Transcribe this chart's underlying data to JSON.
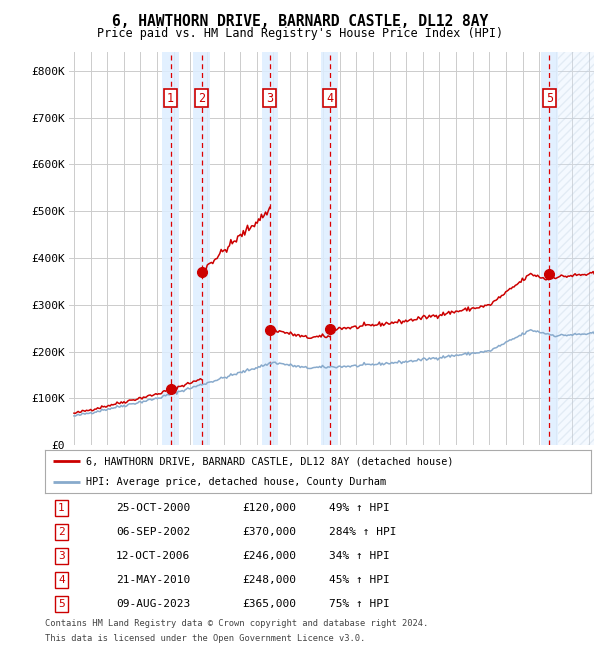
{
  "title": "6, HAWTHORN DRIVE, BARNARD CASTLE, DL12 8AY",
  "subtitle": "Price paid vs. HM Land Registry's House Price Index (HPI)",
  "legend_line1": "6, HAWTHORN DRIVE, BARNARD CASTLE, DL12 8AY (detached house)",
  "legend_line2": "HPI: Average price, detached house, County Durham",
  "footer1": "Contains HM Land Registry data © Crown copyright and database right 2024.",
  "footer2": "This data is licensed under the Open Government Licence v3.0.",
  "transactions": [
    {
      "num": 1,
      "date": "25-OCT-2000",
      "price": 120000,
      "pct": "49%",
      "year": 2000.82
    },
    {
      "num": 2,
      "date": "06-SEP-2002",
      "price": 370000,
      "pct": "284%",
      "year": 2002.69
    },
    {
      "num": 3,
      "date": "12-OCT-2006",
      "price": 246000,
      "pct": "34%",
      "year": 2006.79
    },
    {
      "num": 4,
      "date": "21-MAY-2010",
      "price": 248000,
      "pct": "45%",
      "year": 2010.39
    },
    {
      "num": 5,
      "date": "09-AUG-2023",
      "price": 365000,
      "pct": "75%",
      "year": 2023.61
    }
  ],
  "hpi_color": "#88aacc",
  "price_color": "#cc0000",
  "ylim": [
    0,
    840000
  ],
  "xlim_start": 1994.7,
  "xlim_end": 2026.3,
  "background_color": "#ffffff",
  "grid_color": "#cccccc",
  "shade_color": "#ddeeff"
}
